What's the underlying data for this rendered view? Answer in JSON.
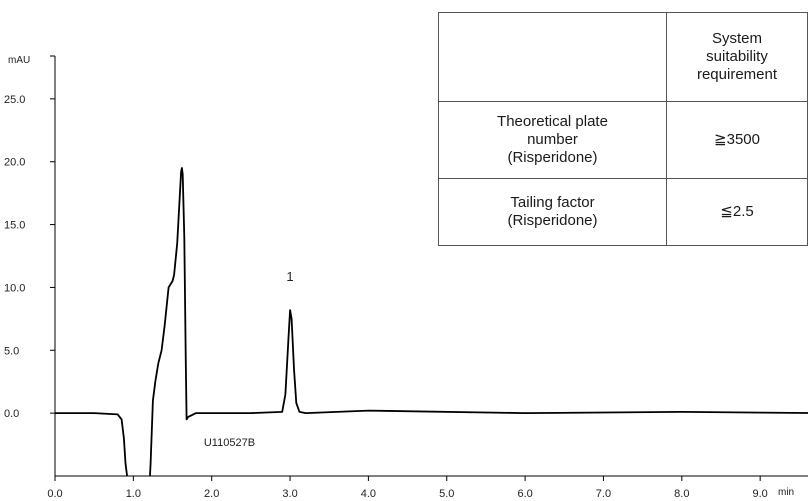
{
  "chart_data": {
    "type": "line",
    "xlabel": "min",
    "ylabel": "mAU",
    "xlim": [
      0.0,
      9.7
    ],
    "ylim": [
      -5.0,
      30.0
    ],
    "x_ticks": [
      "0.0",
      "1.0",
      "2.0",
      "3.0",
      "4.0",
      "5.0",
      "6.0",
      "7.0",
      "8.0",
      "9.0"
    ],
    "y_ticks": [
      "0.0",
      "5.0",
      "10.0",
      "15.0",
      "20.0",
      "25.0"
    ],
    "x_tick_values": [
      0,
      1,
      2,
      3,
      4,
      5,
      6,
      7,
      8,
      9
    ],
    "y_tick_values": [
      0,
      5,
      10,
      15,
      20,
      25
    ],
    "series": [
      {
        "color": "#000000",
        "x": [
          0.0,
          0.5,
          0.8,
          0.85,
          0.88,
          0.9,
          0.93,
          0.97,
          1.2,
          1.22,
          1.25,
          1.28,
          1.32,
          1.36,
          1.4,
          1.45,
          1.5,
          1.52,
          1.56,
          1.59,
          1.61,
          1.62,
          1.63,
          1.65,
          1.67,
          1.68,
          1.7,
          1.8,
          2.5,
          2.9,
          2.94,
          2.98,
          3.0,
          3.02,
          3.05,
          3.08,
          3.12,
          3.2,
          4.0,
          6.0,
          8.0,
          9.7
        ],
        "y": [
          0.0,
          0.0,
          -0.1,
          -0.5,
          -2.0,
          -4.0,
          -5.5,
          -6.5,
          -6.5,
          -4.0,
          1.0,
          2.5,
          4.0,
          5.0,
          7.0,
          10.0,
          10.5,
          11.0,
          13.5,
          17.0,
          19.2,
          19.5,
          19.0,
          14.0,
          4.0,
          -0.5,
          -0.3,
          0.0,
          0.0,
          0.1,
          1.5,
          6.0,
          8.2,
          7.5,
          3.5,
          0.8,
          0.1,
          0.0,
          0.2,
          0.0,
          0.1,
          0.0
        ]
      }
    ],
    "annotations": [
      {
        "text": "1",
        "x": 3.0,
        "y": 10.5
      },
      {
        "text": "U110527B",
        "x": 1.9,
        "y": -2.6
      }
    ]
  },
  "table": {
    "header": {
      "parameter": "",
      "requirement": "System\nsuitability\nrequirement"
    },
    "rows": [
      {
        "parameter": "Theoretical plate\nnumber\n(Risperidone)",
        "requirement": "≧3500"
      },
      {
        "parameter": "Tailing factor\n(Risperidone)",
        "requirement": "≦2.5"
      }
    ]
  }
}
